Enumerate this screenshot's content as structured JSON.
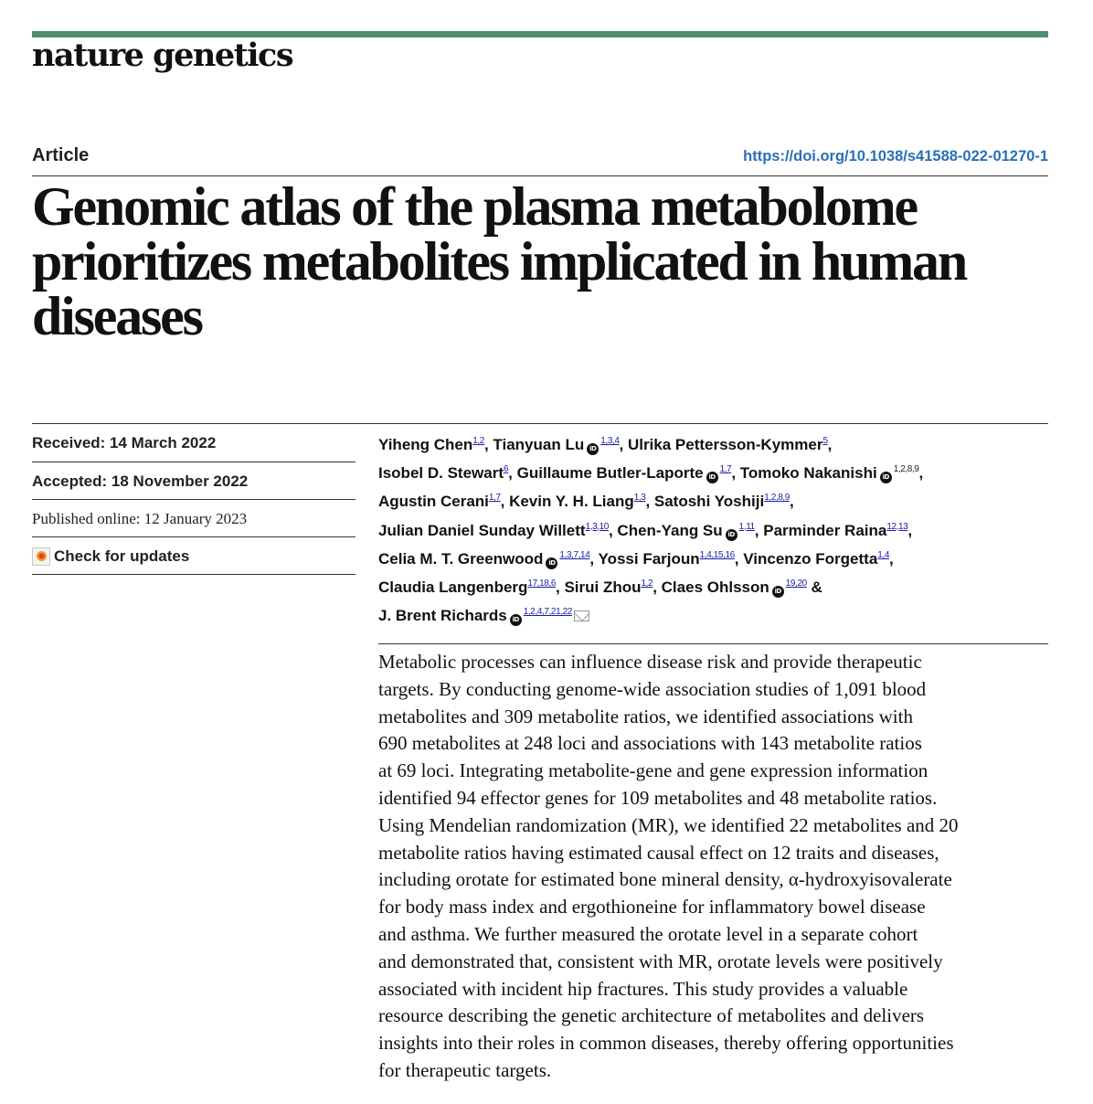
{
  "journal": {
    "name": "nature genetics",
    "accent_color": "#4e8f72"
  },
  "article": {
    "type_label": "Article",
    "doi": "https://doi.org/10.1038/s41588-022-01270-1",
    "title_lines": [
      "Genomic atlas of the plasma metabolome",
      "prioritizes metabolites implicated in human",
      "diseases"
    ]
  },
  "meta": {
    "received": "Received: 14 March 2022",
    "accepted": "Accepted: 18 November 2022",
    "published": "Published online: 12 January 2023",
    "check_updates": "Check for updates"
  },
  "authors": [
    {
      "name": "Yiheng Chen",
      "aff": "1,2",
      "orcid": false,
      "sep": ", "
    },
    {
      "name": "Tianyuan Lu",
      "aff": "1,3,4",
      "orcid": true,
      "sep": ", "
    },
    {
      "name": "Ulrika Pettersson-Kymmer",
      "aff": "5",
      "orcid": false,
      "sep": ","
    },
    {
      "name": "Isobel D. Stewart",
      "aff": "6",
      "orcid": false,
      "sep": ", "
    },
    {
      "name": "Guillaume Butler-Laporte",
      "aff": "1,7",
      "orcid": true,
      "sep": ", "
    },
    {
      "name": "Tomoko Nakanishi",
      "aff": "1,2,8,9",
      "orcid": true,
      "sep": ","
    },
    {
      "name": "Agustin Cerani",
      "aff": "1,7",
      "orcid": false,
      "sep": ", "
    },
    {
      "name": "Kevin Y. H. Liang",
      "aff": "1,3",
      "orcid": false,
      "sep": ", "
    },
    {
      "name": "Satoshi Yoshiji",
      "aff": "1,2,8,9",
      "orcid": false,
      "sep": ","
    },
    {
      "name": "Julian Daniel Sunday Willett",
      "aff": "1,3,10",
      "orcid": false,
      "sep": ", "
    },
    {
      "name": "Chen-Yang Su",
      "aff": "1,11",
      "orcid": true,
      "sep": ", "
    },
    {
      "name": "Parminder Raina",
      "aff": "12,13",
      "orcid": false,
      "sep": ","
    },
    {
      "name": "Celia M. T. Greenwood",
      "aff": "1,3,7,14",
      "orcid": true,
      "sep": ", "
    },
    {
      "name": "Yossi Farjoun",
      "aff": "1,4,15,16",
      "orcid": false,
      "sep": ", "
    },
    {
      "name": "Vincenzo Forgetta",
      "aff": "1,4",
      "orcid": false,
      "sep": ","
    },
    {
      "name": "Claudia Langenberg",
      "aff": "17,18,6",
      "orcid": false,
      "sep": ", "
    },
    {
      "name": "Sirui Zhou",
      "aff": "1,2",
      "orcid": false,
      "sep": ", "
    },
    {
      "name": "Claes Ohlsson",
      "aff": "19,20",
      "orcid": true,
      "sep": " & "
    },
    {
      "name": "J. Brent Richards",
      "aff": "1,2,4,7,21,22",
      "orcid": true,
      "sep": ""
    }
  ],
  "abstract_lines": [
    "Metabolic processes can influence disease risk and provide therapeutic",
    "targets. By conducting genome-wide association studies of 1,091 blood",
    "metabolites and 309 metabolite ratios, we identified associations with",
    "690 metabolites at 248 loci and associations with 143 metabolite ratios",
    "at 69 loci. Integrating metabolite-gene and gene expression information",
    "identified 94 effector genes for 109 metabolites and 48 metabolite ratios.",
    "Using Mendelian randomization (MR), we identified 22 metabolites and 20",
    "metabolite ratios having estimated causal effect on 12 traits and diseases,",
    "including orotate for estimated bone mineral density, α-hydroxyisovalerate",
    "for body mass index and ergothioneine for inflammatory bowel disease",
    "and asthma. We further measured the orotate level in a separate cohort",
    "and demonstrated that, consistent with MR, orotate levels were positively",
    "associated with incident hip fractures. This study provides a valuable",
    "resource describing the genetic architecture of metabolites and delivers",
    "insights into their roles in common diseases, thereby offering opportunities",
    "for therapeutic targets."
  ]
}
